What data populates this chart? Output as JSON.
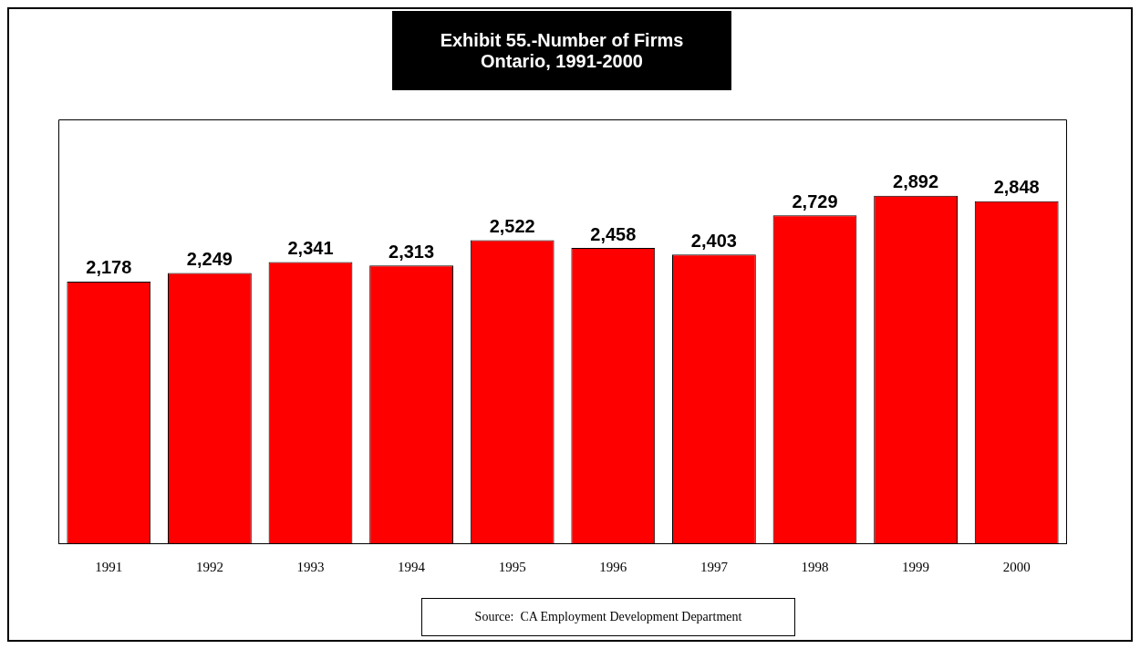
{
  "chart_data": {
    "type": "bar",
    "title": "Exhibit 55.-Number of Firms\nOntario, 1991-2000",
    "categories": [
      "1991",
      "1992",
      "1993",
      "1994",
      "1995",
      "1996",
      "1997",
      "1998",
      "1999",
      "2000"
    ],
    "values": [
      2178,
      2249,
      2341,
      2313,
      2522,
      2458,
      2403,
      2729,
      2892,
      2848
    ],
    "value_labels": [
      "2,178",
      "2,249",
      "2,341",
      "2,313",
      "2,522",
      "2,458",
      "2,403",
      "2,729",
      "2,892",
      "2,848"
    ],
    "color": "#ff0000",
    "grid": false,
    "legend": false,
    "tick_labels": "x",
    "annotations": [
      "Source:  CA Employment Development Department"
    ]
  }
}
